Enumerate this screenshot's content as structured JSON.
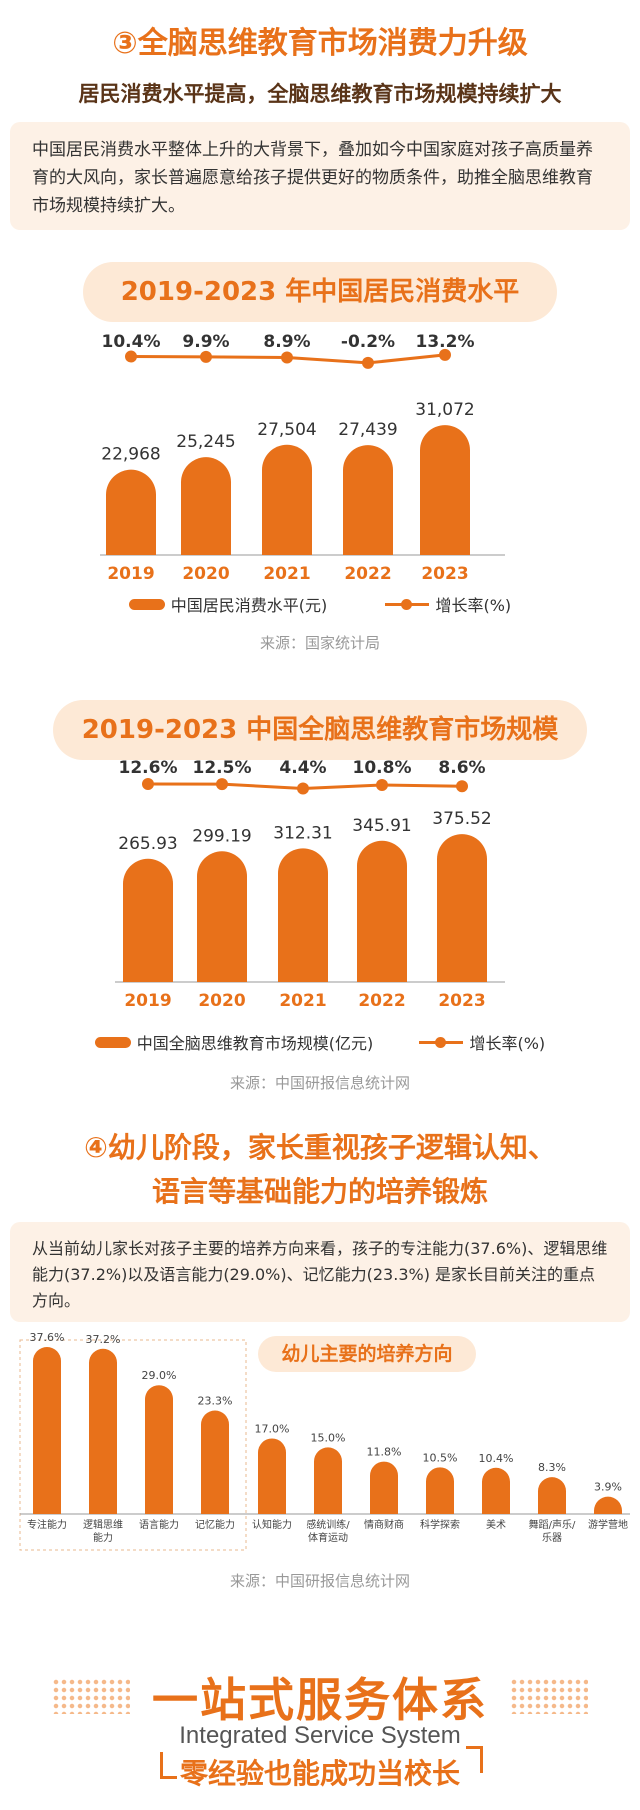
{
  "section3": {
    "title": "③全脑思维教育市场消费力升级",
    "subtitle": "居民消费水平提高，全脑思维教育市场规模持续扩大",
    "paragraph": "中国居民消费水平整体上升的大背景下，叠加如今中国家庭对孩子高质量养育的大风向，家长普遍愿意给孩子提供更好的物质条件，助推全脑思维教育市场规模持续扩大。"
  },
  "chart1": {
    "pill_title": "2019-2023 年中国居民消费水平",
    "legend_bar": "中国居民消费水平(元)",
    "legend_line": "增长率(%)",
    "source": "来源：国家统计局"
  },
  "chart2": {
    "pill_title": "2019-2023 中国全脑思维教育市场规模",
    "legend_bar": "中国全脑思维教育市场规模(亿元)",
    "legend_line": "增长率(%)",
    "source": "来源：中国研报信息统计网"
  },
  "section4": {
    "title_line1": "④幼儿阶段，家长重视孩子逻辑认知、",
    "title_line2": "语言等基础能力的培养锻炼",
    "paragraph": "从当前幼儿家长对孩子主要的培养方向来看，孩子的专注能力(37.6%)、逻辑思维能力(37.2%)以及语言能力(29.0%)、记忆能力(23.3%) 是家长目前关注的重点方向。"
  },
  "chart3": {
    "pill_title": "幼儿主要的培养方向",
    "source": "来源：中国研报信息统计网"
  },
  "footer": {
    "title_cn": "一站式服务体系",
    "title_en": "Integrated Service System",
    "slogan": "零经验也能成功当校长"
  },
  "colors": {
    "accent": "#e8711a",
    "pill_bg": "#fde9d6",
    "box_bg": "#fdf1e6",
    "brown": "#5a3418"
  },
  "chart_data": [
    {
      "type": "bar",
      "categories": [
        "2019",
        "2020",
        "2021",
        "2022",
        "2023"
      ],
      "series": [
        {
          "name": "中国居民消费水平(元)",
          "type": "bar",
          "values": [
            22968,
            25245,
            27504,
            27439,
            31072
          ],
          "labels": [
            "22,968",
            "25,245",
            "27,504",
            "27,439",
            "31,072"
          ]
        },
        {
          "name": "增长率(%)",
          "type": "line",
          "values": [
            10.4,
            9.9,
            8.9,
            -0.2,
            13.2
          ],
          "labels": [
            "10.4%",
            "9.9%",
            "8.9%",
            "-0.2%",
            "13.2%"
          ]
        }
      ],
      "title": "2019-2023 年中国居民消费水平"
    },
    {
      "type": "bar",
      "categories": [
        "2019",
        "2020",
        "2021",
        "2022",
        "2023"
      ],
      "series": [
        {
          "name": "中国全脑思维教育市场规模(亿元)",
          "type": "bar",
          "values": [
            265.93,
            299.19,
            312.31,
            345.91,
            375.52
          ],
          "labels": [
            "265.93",
            "299.19",
            "312.31",
            "345.91",
            "375.52"
          ]
        },
        {
          "name": "增长率(%)",
          "type": "line",
          "values": [
            12.6,
            12.5,
            4.4,
            10.8,
            8.6
          ],
          "labels": [
            "12.6%",
            "12.5%",
            "4.4%",
            "10.8%",
            "8.6%"
          ]
        }
      ],
      "title": "2019-2023 中国全脑思维教育市场规模"
    },
    {
      "type": "bar",
      "categories": [
        "专注能力",
        "逻辑思维\n能力",
        "语言能力",
        "记忆能力",
        "认知能力",
        "感统训练/\n体育运动",
        "情商财商",
        "科学探索",
        "美术",
        "舞蹈/声乐/\n乐器",
        "游学营地"
      ],
      "values": [
        37.6,
        37.2,
        29.0,
        23.3,
        17.0,
        15.0,
        11.8,
        10.5,
        10.4,
        8.3,
        3.9
      ],
      "labels": [
        "37.6%",
        "37.2%",
        "29.0%",
        "23.3%",
        "17.0%",
        "15.0%",
        "11.8%",
        "10.5%",
        "10.4%",
        "8.3%",
        "3.9%"
      ],
      "title": "幼儿主要的培养方向",
      "highlight_group": 4
    }
  ]
}
